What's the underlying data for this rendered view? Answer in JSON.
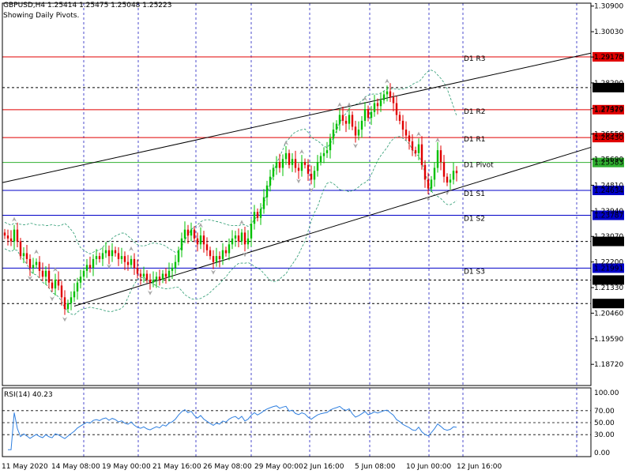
{
  "header": {
    "line1": "GBPUSD,H4  1.25414 1.25475 1.25048 1.25223",
    "line2": "Showing Daily Pivots."
  },
  "rsi_panel": {
    "label": "RSI(14) 40.23"
  },
  "colors": {
    "grid": "#2020c0",
    "candle_up": "#00c000",
    "candle_down": "#e00000",
    "resistance": "#e00000",
    "support": "#0000c8",
    "pivot": "#30b030",
    "dotted": "#000000",
    "bands": "#2a9a70",
    "rsi": "#3080e0",
    "fractal": "#a8a8a8"
  },
  "chart_data": {
    "type": "candlestick",
    "symbol": "GBPUSD",
    "timeframe": "H4",
    "price_axis_ticks": [
      "1.30900",
      "1.30030",
      "1.29170",
      "1.28290",
      "1.27420",
      "1.26550",
      "1.25690",
      "1.24810",
      "1.23940",
      "1.23070",
      "1.22200",
      "1.21330",
      "1.20460",
      "1.19590",
      "1.18720"
    ],
    "price_axis_range": [
      1.18,
      1.31
    ],
    "time_axis_ticks": [
      "11 May 2020",
      "14 May 08:00",
      "19 May 00:00",
      "21 May 16:00",
      "26 May 08:00",
      "29 May 00:00",
      "2 Jun 16:00",
      "5 Jun 08:00",
      "10 Jun 00:00",
      "12 Jun 16:00"
    ],
    "pivots": [
      {
        "name": "D1 R3",
        "value": 1.29175,
        "price_label": "1.29175",
        "kind": "resistance"
      },
      {
        "name": "D1 R2",
        "value": 1.27379,
        "price_label": "1.27379",
        "kind": "resistance"
      },
      {
        "name": "D1 R1",
        "value": 1.2643,
        "price_label": "1.26430",
        "kind": "resistance"
      },
      {
        "name": "D1 Pivot",
        "value": 1.25583,
        "price_label": "1.25583",
        "kind": "pivot"
      },
      {
        "name": "D1 S1",
        "value": 1.24634,
        "price_label": "1.24634",
        "kind": "support"
      },
      {
        "name": "D1 S2",
        "value": 1.23787,
        "price_label": "1.23787",
        "kind": "support"
      },
      {
        "name": "D1 S3",
        "value": 1.21991,
        "price_label": "1.21991",
        "kind": "support"
      }
    ],
    "dotted_levels": [
      {
        "value": 1.28129,
        "price_label": "1.28129"
      },
      {
        "value": 1.229,
        "price_label": "1.22900"
      },
      {
        "value": 1.21587,
        "price_label": "1.21587"
      },
      {
        "value": 1.20788,
        "price_label": "1.20788"
      }
    ],
    "trendlines": [
      {
        "name": "upper-channel",
        "from": [
          0,
          1.249
        ],
        "to": [
          165,
          1.293
        ]
      },
      {
        "name": "lower-channel",
        "from": [
          22,
          1.207
        ],
        "to": [
          165,
          1.261
        ]
      }
    ],
    "close": [
      1.231,
      1.23,
      1.229,
      1.233,
      1.229,
      1.224,
      1.225,
      1.223,
      1.22,
      1.221,
      1.222,
      1.219,
      1.217,
      1.219,
      1.215,
      1.213,
      1.216,
      1.214,
      1.21,
      1.206,
      1.208,
      1.21,
      1.212,
      1.215,
      1.217,
      1.219,
      1.221,
      1.22,
      1.223,
      1.224,
      1.223,
      1.225,
      1.226,
      1.224,
      1.226,
      1.225,
      1.223,
      1.224,
      1.222,
      1.221,
      1.223,
      1.22,
      1.218,
      1.217,
      1.218,
      1.216,
      1.215,
      1.216,
      1.217,
      1.216,
      1.218,
      1.217,
      1.219,
      1.22,
      1.222,
      1.226,
      1.23,
      1.233,
      1.231,
      1.233,
      1.23,
      1.228,
      1.231,
      1.228,
      1.226,
      1.224,
      1.222,
      1.224,
      1.223,
      1.226,
      1.225,
      1.228,
      1.23,
      1.231,
      1.229,
      1.232,
      1.228,
      1.23,
      1.235,
      1.239,
      1.237,
      1.24,
      1.244,
      1.248,
      1.251,
      1.254,
      1.256,
      1.254,
      1.257,
      1.259,
      1.255,
      1.257,
      1.254,
      1.253,
      1.256,
      1.255,
      1.252,
      1.25,
      1.253,
      1.256,
      1.258,
      1.259,
      1.26,
      1.264,
      1.267,
      1.269,
      1.272,
      1.27,
      1.269,
      1.272,
      1.268,
      1.265,
      1.267,
      1.27,
      1.274,
      1.271,
      1.273,
      1.276,
      1.275,
      1.277,
      1.279,
      1.28,
      1.278,
      1.276,
      1.272,
      1.27,
      1.267,
      1.265,
      1.263,
      1.26,
      1.259,
      1.262,
      1.255,
      1.25,
      1.247,
      1.25,
      1.254,
      1.26,
      1.256,
      1.251,
      1.249,
      1.25,
      1.253,
      1.2522
    ]
  }
}
